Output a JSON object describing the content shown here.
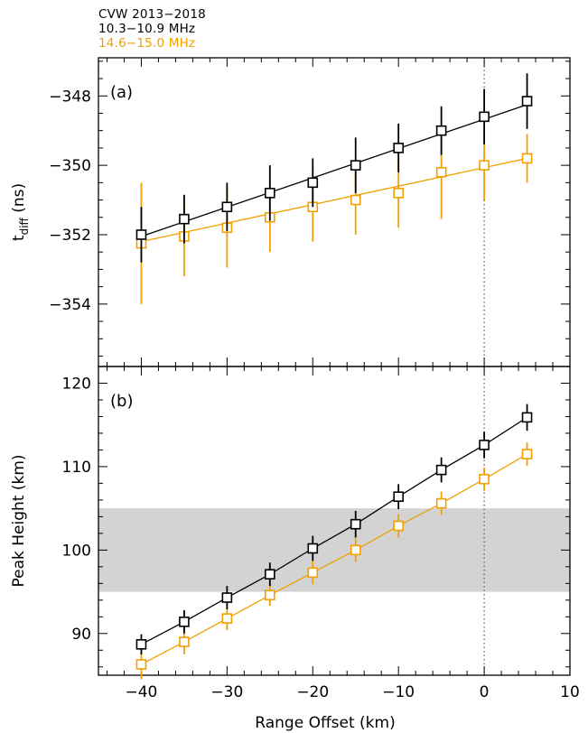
{
  "legend": {
    "source": "CVW 2013−2018",
    "band1": "10.3−10.9 MHz",
    "band2": "14.6−15.0 MHz"
  },
  "colors": {
    "band1": "#000000",
    "band2": "#f0a000",
    "shade": "#d3d3d3"
  },
  "chart_data": [
    {
      "type": "scatter",
      "panel_label": "(a)",
      "ylabel_main": "t",
      "ylabel_sub": "diff",
      "ylabel_unit": "(ns)",
      "xlabel": "",
      "x": [
        -40,
        -35,
        -30,
        -25,
        -20,
        -15,
        -10,
        -5,
        0,
        5
      ],
      "xlim": [
        -45,
        10
      ],
      "ylim": [
        -355.8,
        -346.9
      ],
      "yticks": [
        -354,
        -352,
        -350,
        -348
      ],
      "ytick_labels": [
        "−354",
        "−352",
        "−350",
        "−348"
      ],
      "vline_x": 0,
      "series": [
        {
          "name": "10.3−10.9 MHz",
          "x": [
            -40,
            -35,
            -30,
            -25,
            -20,
            -15,
            -10,
            -5,
            0,
            5
          ],
          "y": [
            -352.0,
            -351.55,
            -351.2,
            -350.8,
            -350.5,
            -350.0,
            -349.5,
            -349.0,
            -348.6,
            -348.15
          ],
          "err": [
            0.8,
            0.7,
            0.7,
            0.8,
            0.7,
            0.8,
            0.7,
            0.7,
            0.8,
            0.8
          ],
          "fit": [
            [
              -40,
              -352.05
            ],
            [
              5,
              -348.25
            ]
          ]
        },
        {
          "name": "14.6−15.0 MHz",
          "x": [
            -40,
            -35,
            -30,
            -25,
            -20,
            -15,
            -10,
            -5,
            0,
            5
          ],
          "y": [
            -352.25,
            -352.05,
            -351.8,
            -351.5,
            -351.2,
            -351.0,
            -350.8,
            -350.2,
            -350.0,
            -349.8
          ],
          "err": [
            1.75,
            1.15,
            1.15,
            1.0,
            1.0,
            1.0,
            1.0,
            1.35,
            1.0,
            0.7
          ],
          "fit": [
            [
              -40,
              -352.2
            ],
            [
              5,
              -349.8
            ]
          ]
        }
      ]
    },
    {
      "type": "scatter",
      "panel_label": "(b)",
      "ylabel": "Peak Height (km)",
      "xlabel": "Range Offset (km)",
      "x": [
        -40,
        -35,
        -30,
        -25,
        -20,
        -15,
        -10,
        -5,
        0,
        5
      ],
      "xlim": [
        -45,
        10
      ],
      "ylim": [
        85,
        122
      ],
      "yticks": [
        90,
        100,
        110,
        120
      ],
      "ytick_labels": [
        "90",
        "100",
        "110",
        "120"
      ],
      "xticks": [
        -40,
        -30,
        -20,
        -10,
        0,
        10
      ],
      "xtick_labels": [
        "−40",
        "−30",
        "−20",
        "−10",
        "0",
        "10"
      ],
      "shaded_band": [
        95,
        105
      ],
      "vline_x": 0,
      "series": [
        {
          "name": "10.3−10.9 MHz",
          "x": [
            -40,
            -35,
            -30,
            -25,
            -20,
            -15,
            -10,
            -5,
            0,
            5
          ],
          "y": [
            88.7,
            91.4,
            94.3,
            97.1,
            100.2,
            103.1,
            106.4,
            109.6,
            112.6,
            115.9
          ],
          "err": [
            1.2,
            1.4,
            1.4,
            1.4,
            1.5,
            1.6,
            1.5,
            1.5,
            1.6,
            1.6
          ]
        },
        {
          "name": "14.6−15.0 MHz",
          "x": [
            -40,
            -35,
            -30,
            -25,
            -20,
            -15,
            -10,
            -5,
            0,
            5
          ],
          "y": [
            86.3,
            89.0,
            91.8,
            94.6,
            97.3,
            100.0,
            102.9,
            105.6,
            108.5,
            111.5
          ],
          "err": [
            1.8,
            1.5,
            1.4,
            1.3,
            1.4,
            1.4,
            1.4,
            1.4,
            1.4,
            1.4
          ]
        }
      ]
    }
  ]
}
